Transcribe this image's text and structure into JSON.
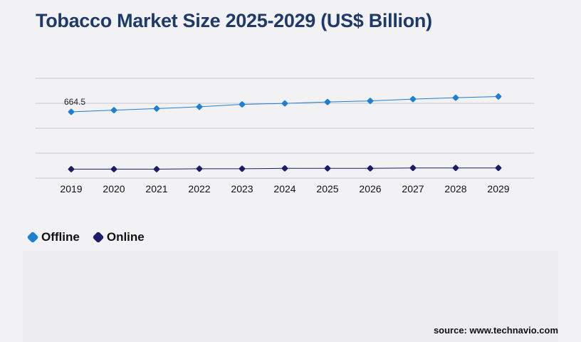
{
  "title": "Tobacco Market Size 2025-2029 (US$ Billion)",
  "source_label": "source: www.technavio.com",
  "colors": {
    "offline": "#1f7fd1",
    "online": "#1c1c6b",
    "grid": "#c8c8cc",
    "title": "#1f3a68"
  },
  "chart_data": {
    "type": "line",
    "title": "Tobacco Market Size 2025-2029 (US$ Billion)",
    "xlabel": "",
    "ylabel": "",
    "categories": [
      "2019",
      "2020",
      "2021",
      "2022",
      "2023",
      "2024",
      "2025",
      "2026",
      "2027",
      "2028",
      "2029"
    ],
    "ylim": [
      0,
      1000
    ],
    "grid": true,
    "legend_position": "bottom-left",
    "series": [
      {
        "name": "Offline",
        "color": "#1f7fd1",
        "values": [
          664.5,
          681,
          697,
          715,
          739,
          749,
          763,
          774,
          792,
          806,
          818
        ]
      },
      {
        "name": "Online",
        "color": "#1c1c6b",
        "values": [
          90,
          90,
          90,
          94,
          94,
          98,
          98,
          98,
          102,
          102,
          102
        ]
      }
    ],
    "annotations": [
      {
        "series": "Offline",
        "index": 0,
        "text": "664.5"
      }
    ]
  }
}
